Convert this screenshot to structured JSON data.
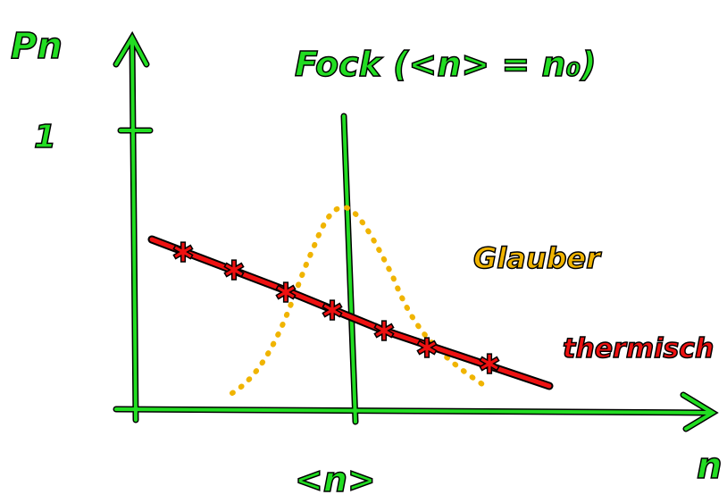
{
  "y_axis_label": "Pn",
  "y_tick_label": "1",
  "x_axis_label": "n",
  "mean_label": "<n>",
  "title": "Fock (<n> = n₀)",
  "glauber_label": "Glauber",
  "thermal_label": "thermisch"
}
